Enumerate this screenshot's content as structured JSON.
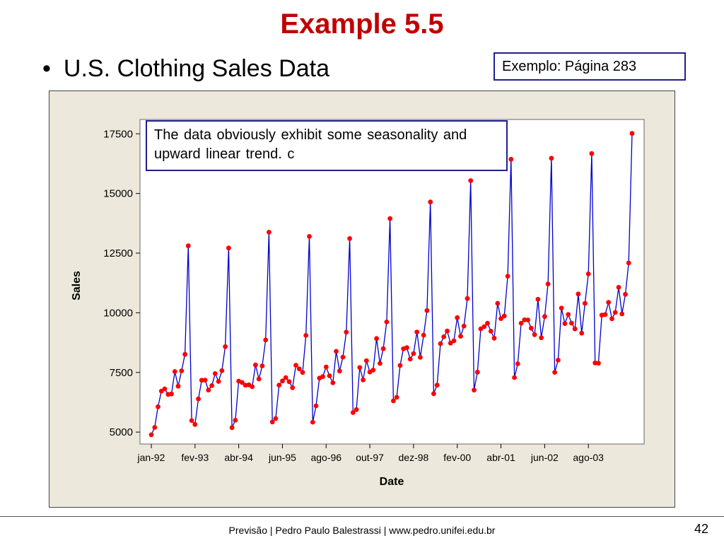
{
  "slide": {
    "title": "Example 5.5",
    "bullet_marker": "•",
    "bullet": "U.S. Clothing Sales Data",
    "reference": "Exemplo: Página 283",
    "note": "The data obviously exhibit some seasonality  and  upward  linear  trend. c"
  },
  "footer": {
    "text": "Previsão | Pedro Paulo Balestrassi | www.pedro.unifei.edu.br",
    "page_number": "42"
  },
  "colors": {
    "title": "#c00000",
    "line": "#0000cc",
    "marker": "#ff0000",
    "frame_bg": "#ece9dc"
  },
  "chart_data": {
    "type": "line",
    "markers": true,
    "xlabel": "Date",
    "ylabel": "Sales",
    "ylim": [
      4500,
      18100
    ],
    "yticks": [
      5000,
      7500,
      10000,
      12500,
      15000,
      17500
    ],
    "xtick_labels": [
      "jan-92",
      "fev-93",
      "abr-94",
      "jun-95",
      "ago-96",
      "out-97",
      "dez-98",
      "fev-00",
      "abr-01",
      "jun-02",
      "ago-03"
    ],
    "x_start": "jan-92",
    "x_end": "dez-03",
    "series": [
      {
        "values": [
          4889,
          5197,
          6061,
          6720,
          6811,
          6579,
          6598,
          7536,
          6923,
          7566,
          8257,
          12804,
          5480,
          5322,
          6390,
          7174,
          7179,
          6762,
          6947,
          7452,
          7121,
          7575,
          8581,
          12712,
          5187,
          5495,
          7136,
          7078,
          6965,
          6979,
          6904,
          7812,
          7227,
          7773,
          8862,
          13378,
          5420,
          5568,
          6968,
          7143,
          7282,
          7112,
          6861,
          7802,
          7649,
          7502,
          9051,
          13198,
          5416,
          6100,
          7261,
          7328,
          7730,
          7359,
          7066,
          8383,
          7558,
          8142,
          9186,
          13109,
          5818,
          5944,
          7707,
          7187,
          7992,
          7515,
          7600,
          8920,
          7878,
          8495,
          9614,
          13949,
          6308,
          6459,
          7793,
          8492,
          8538,
          8058,
          8290,
          9192,
          8134,
          9063,
          10092,
          14642,
          6609,
          6968,
          8704,
          8994,
          9234,
          8729,
          8825,
          9795,
          9017,
          9443,
          10598,
          15538,
          6760,
          7513,
          9327,
          9419,
          9561,
          9230,
          8937,
          10397,
          9755,
          9865,
          11535,
          16432,
          7284,
          7864,
          9563,
          9703,
          9700,
          9352,
          9085,
          10566,
          8952,
          9843,
          11207,
          16476,
          7503,
          8014,
          10196,
          9550,
          9928,
          9568,
          9324,
          10787,
          9146,
          10392,
          11630,
          16672,
          7898,
          7888,
          9901,
          9925,
          10437,
          9751,
          10014,
          11066,
          9953,
          10773,
          12087,
          17515
        ]
      }
    ]
  }
}
